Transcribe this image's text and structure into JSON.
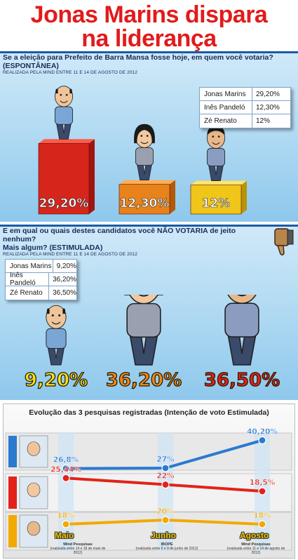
{
  "headline": {
    "line1": "Jonas Marins dispara",
    "line2": "na liderança"
  },
  "colors": {
    "jonas": "#2a7ad0",
    "ines": "#e2231a",
    "ze": "#f2a900",
    "headline": "#e21b1b",
    "accent": "#1d5aa6"
  },
  "survey1": {
    "question": "Se a eleição para Prefeito de Barra Mansa fosse hoje, em quem você votaria? (ESPONTÂNEA)",
    "note": "REALIZADA PELA MIND ENTRE 11 E 14 DE AGOSTO DE 2012",
    "legend": [
      {
        "name": "Jonas Marins",
        "value": "29,20%"
      },
      {
        "name": "Inês Pandeló",
        "value": "12,30%"
      },
      {
        "name": "Zé Renato",
        "value": "12%"
      }
    ]
  },
  "survey2": {
    "question_line1": "E em qual ou quais destes candidatos você NÃO VOTARIA de jeito nenhum?",
    "question_line2": "Mais algum? (ESTIMULADA)",
    "note": "REALIZADA PELA MIND ENTRE 11 E 14 DE AGOSTO DE 2012",
    "legend": [
      {
        "name": "Jonas Marins",
        "value": "9,20%"
      },
      {
        "name": "Inês Pandeló",
        "value": "36,20%"
      },
      {
        "name": "Zé Renato",
        "value": "36,50%"
      }
    ]
  },
  "evolution": {
    "title": "Evolução das 3 pesquisas registradas (Intenção de voto Estimulada)",
    "months": [
      "Maio",
      "Junho",
      "Agosto"
    ],
    "sources": [
      {
        "name": "Mind Pesquisas",
        "detail": "(realizada entre 14 e 18 de maio de 2012)"
      },
      {
        "name": "IBOPE",
        "detail": "(realizada entre 6 e 9 de junho de 2012)"
      },
      {
        "name": "Mind Pesquisas",
        "detail": "(realizada entre 11 e 14 de agosto de 2012)"
      }
    ]
  },
  "chart_data": [
    {
      "type": "bar",
      "categories": [
        "Jonas Marins",
        "Inês Pandeló",
        "Zé Renato"
      ],
      "values": [
        29.2,
        12.3,
        12
      ],
      "labels": [
        "29,20%",
        "12,30%",
        "12%"
      ],
      "title": "Se a eleição para Prefeito de Barra Mansa fosse hoje, em quem você votaria? (ESPONTÂNEA)"
    },
    {
      "type": "bar",
      "categories": [
        "Jonas Marins",
        "Inês Pandeló",
        "Zé Renato"
      ],
      "values": [
        9.2,
        36.2,
        36.5
      ],
      "labels": [
        "9,20%",
        "36,20%",
        "36,50%"
      ],
      "title": "E em qual ou quais destes candidatos você NÃO VOTARIA de jeito nenhum? Mais algum? (ESTIMULADA)"
    },
    {
      "type": "line",
      "title": "Evolução das 3 pesquisas registradas (Intenção de voto Estimulada)",
      "x": [
        "Maio",
        "Junho",
        "Agosto"
      ],
      "series": [
        {
          "values": [
            26.8,
            27,
            40.2
          ],
          "labels": [
            "26,8%",
            "27%",
            "40,20%"
          ]
        },
        {
          "values": [
            25.44,
            22,
            18.5
          ],
          "labels": [
            "25,44%",
            "22%",
            "18,5%"
          ]
        },
        {
          "values": [
            18,
            20,
            18
          ],
          "labels": [
            "18%",
            "20%",
            "18%"
          ]
        }
      ]
    }
  ]
}
